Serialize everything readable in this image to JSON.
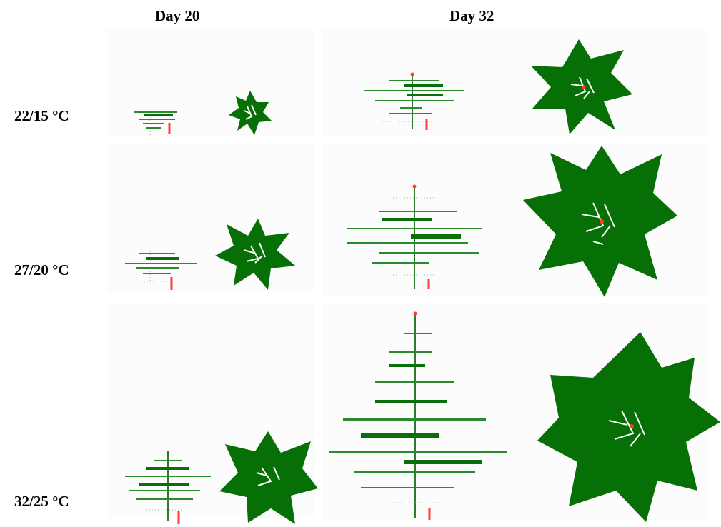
{
  "columns": {
    "day20": "Day 20",
    "day32": "Day 32"
  },
  "rows": {
    "r1": "22/15 °C",
    "r2": "27/20 °C",
    "r3": "32/25 °C"
  },
  "colors": {
    "leaf": "#067006",
    "marker": "#ff3b3b",
    "background": "#ffffff"
  }
}
